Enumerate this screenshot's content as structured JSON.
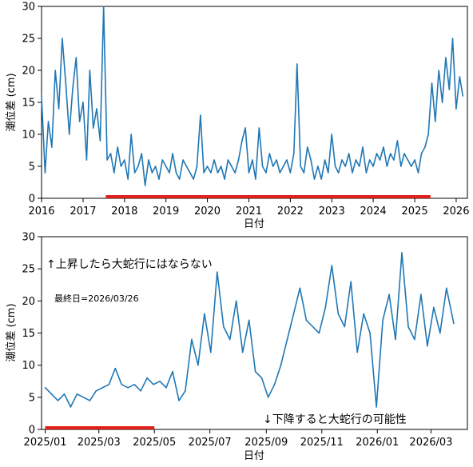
{
  "colors": {
    "series": "#1f77b4",
    "highlight": "#e0201b",
    "axis": "#000000"
  },
  "chart_data": [
    {
      "type": "line",
      "xlabel": "日付",
      "ylabel": "潮位差 (cm)",
      "ylim": [
        0,
        30
      ],
      "y_ticks": [
        0,
        5,
        10,
        15,
        20,
        25,
        30
      ],
      "xlim": [
        "2016-01-01",
        "2026-04-10"
      ],
      "x_ticks": [
        "2016",
        "2017",
        "2018",
        "2019",
        "2020",
        "2021",
        "2022",
        "2023",
        "2024",
        "2025",
        "2026"
      ],
      "highlight_span": [
        "2017-07-20",
        "2025-05-20"
      ],
      "series": [
        {
          "x": [
            "2016-01",
            "2016-02",
            "2016-03",
            "2016-04",
            "2016-05",
            "2016-06",
            "2016-07",
            "2016-08",
            "2016-09",
            "2016-10",
            "2016-11",
            "2016-12",
            "2017-01",
            "2017-02",
            "2017-03",
            "2017-04",
            "2017-05",
            "2017-06",
            "2017-07",
            "2017-08",
            "2017-09",
            "2017-10",
            "2017-11",
            "2017-12",
            "2018-01",
            "2018-02",
            "2018-03",
            "2018-04",
            "2018-05",
            "2018-06",
            "2018-07",
            "2018-08",
            "2018-09",
            "2018-10",
            "2018-11",
            "2018-12",
            "2019-01",
            "2019-02",
            "2019-03",
            "2019-04",
            "2019-05",
            "2019-06",
            "2019-07",
            "2019-08",
            "2019-09",
            "2019-10",
            "2019-11",
            "2019-12",
            "2020-01",
            "2020-02",
            "2020-03",
            "2020-04",
            "2020-05",
            "2020-06",
            "2020-07",
            "2020-08",
            "2020-09",
            "2020-10",
            "2020-11",
            "2020-12",
            "2021-01",
            "2021-02",
            "2021-03",
            "2021-04",
            "2021-05",
            "2021-06",
            "2021-07",
            "2021-08",
            "2021-09",
            "2021-10",
            "2021-11",
            "2021-12",
            "2022-01",
            "2022-02",
            "2022-03",
            "2022-04",
            "2022-05",
            "2022-06",
            "2022-07",
            "2022-08",
            "2022-09",
            "2022-10",
            "2022-11",
            "2022-12",
            "2023-01",
            "2023-02",
            "2023-03",
            "2023-04",
            "2023-05",
            "2023-06",
            "2023-07",
            "2023-08",
            "2023-09",
            "2023-10",
            "2023-11",
            "2023-12",
            "2024-01",
            "2024-02",
            "2024-03",
            "2024-04",
            "2024-05",
            "2024-06",
            "2024-07",
            "2024-08",
            "2024-09",
            "2024-10",
            "2024-11",
            "2024-12",
            "2025-01",
            "2025-02",
            "2025-03",
            "2025-04",
            "2025-05",
            "2025-06",
            "2025-07",
            "2025-08",
            "2025-09",
            "2025-10",
            "2025-11",
            "2025-12",
            "2026-01",
            "2026-02",
            "2026-03"
          ],
          "values": [
            16,
            4,
            12,
            8,
            20,
            14,
            25,
            18,
            10,
            17,
            22,
            12,
            15,
            6,
            20,
            11,
            14,
            9,
            30,
            6,
            7,
            4,
            8,
            5,
            6,
            3,
            10,
            4,
            5,
            7,
            2,
            6,
            4,
            5,
            3,
            6,
            5,
            4,
            7,
            4,
            3,
            6,
            5,
            4,
            3,
            5,
            13,
            4,
            5,
            4,
            6,
            4,
            5,
            3,
            6,
            5,
            4,
            6,
            9,
            11,
            4,
            6,
            3,
            11,
            5,
            4,
            7,
            5,
            6,
            4,
            5,
            6,
            4,
            7,
            21,
            5,
            4,
            8,
            6,
            3,
            5,
            3,
            6,
            4,
            10,
            5,
            4,
            6,
            5,
            7,
            4,
            6,
            5,
            8,
            4,
            6,
            5,
            7,
            6,
            8,
            5,
            7,
            6,
            9,
            5,
            7,
            6,
            5,
            6,
            4,
            7,
            8,
            10,
            18,
            12,
            20,
            15,
            22,
            17,
            25,
            14,
            19,
            16
          ]
        }
      ]
    },
    {
      "type": "line",
      "xlabel": "日付",
      "ylabel": "潮位差 (cm)",
      "ylim": [
        0,
        30
      ],
      "y_ticks": [
        0,
        5,
        10,
        15,
        20,
        25,
        30
      ],
      "xlim": [
        "2024-12-28",
        "2026-04-10"
      ],
      "x_ticks": [
        "2025/01",
        "2025/03",
        "2025/05",
        "2025/07",
        "2025/09",
        "2025/11",
        "2026/01",
        "2026/03"
      ],
      "highlight_span": [
        "2025-01-01",
        "2025-05-01"
      ],
      "annotations": {
        "up_text": "↑上昇したら大蛇行にはならない",
        "last_date": "最終日=2026/03/26",
        "down_text": "↓下降すると大蛇行の可能性"
      },
      "series": [
        {
          "x": [
            "2025-01-01",
            "2025-01-08",
            "2025-01-15",
            "2025-01-22",
            "2025-01-29",
            "2025-02-05",
            "2025-02-12",
            "2025-02-19",
            "2025-02-26",
            "2025-03-05",
            "2025-03-12",
            "2025-03-19",
            "2025-03-26",
            "2025-04-02",
            "2025-04-09",
            "2025-04-16",
            "2025-04-23",
            "2025-04-30",
            "2025-05-07",
            "2025-05-14",
            "2025-05-21",
            "2025-05-28",
            "2025-06-04",
            "2025-06-11",
            "2025-06-18",
            "2025-06-25",
            "2025-07-02",
            "2025-07-09",
            "2025-07-16",
            "2025-07-23",
            "2025-07-30",
            "2025-08-06",
            "2025-08-13",
            "2025-08-20",
            "2025-08-27",
            "2025-09-03",
            "2025-09-10",
            "2025-09-17",
            "2025-09-24",
            "2025-10-01",
            "2025-10-08",
            "2025-10-15",
            "2025-10-22",
            "2025-10-29",
            "2025-11-05",
            "2025-11-12",
            "2025-11-19",
            "2025-11-26",
            "2025-12-03",
            "2025-12-10",
            "2025-12-17",
            "2025-12-24",
            "2025-12-31",
            "2026-01-07",
            "2026-01-14",
            "2026-01-21",
            "2026-01-28",
            "2026-02-04",
            "2026-02-11",
            "2026-02-18",
            "2026-02-25",
            "2026-03-04",
            "2026-03-11",
            "2026-03-18",
            "2026-03-26"
          ],
          "values": [
            6.5,
            5.5,
            4.5,
            5.5,
            3.5,
            5.5,
            5,
            4.5,
            6,
            6.5,
            7,
            9.5,
            7,
            6.5,
            7,
            6,
            8,
            7,
            7.5,
            6.5,
            9,
            4.5,
            6,
            14,
            10,
            18,
            12,
            24.5,
            16,
            14,
            20,
            12,
            17,
            9,
            8,
            5,
            7,
            10,
            14,
            18,
            22,
            17,
            16,
            15,
            19,
            25.5,
            18,
            16,
            23,
            12,
            18,
            15,
            3.5,
            17,
            21,
            14,
            27.5,
            16,
            14,
            21,
            13,
            19,
            15,
            22,
            16.5
          ]
        }
      ]
    }
  ]
}
